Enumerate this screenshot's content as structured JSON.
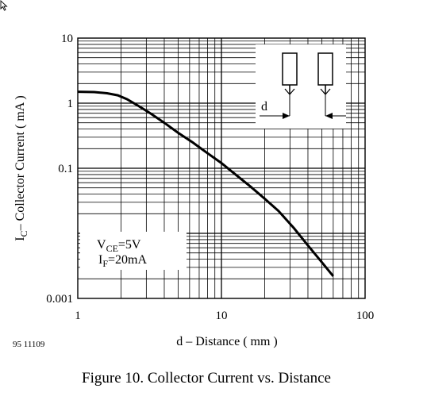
{
  "chart_data": {
    "type": "line",
    "xscale": "log",
    "yscale": "log",
    "xlim": [
      1,
      100
    ],
    "ylim": [
      0.001,
      10
    ],
    "grid": true,
    "xlabel": "d – Distance ( mm )",
    "ylabel": "I",
    "ylabel_sub": "C",
    "ylabel_rest": "– Collector Current ( mA )",
    "x_ticks": [
      {
        "value": 1,
        "label": "1"
      },
      {
        "value": 10,
        "label": "10"
      },
      {
        "value": 100,
        "label": "100"
      }
    ],
    "y_ticks": [
      {
        "value": 10,
        "label": "10"
      },
      {
        "value": 1,
        "label": "1"
      },
      {
        "value": 0.1,
        "label": "0.1"
      },
      {
        "value": 0.001,
        "label": "0.001"
      }
    ],
    "series": [
      {
        "x": [
          1,
          1.3,
          1.6,
          1.9,
          2.2,
          2.6,
          3.2,
          4,
          5,
          6.3,
          8,
          10,
          13,
          16,
          20,
          25,
          32,
          40,
          50,
          60
        ],
        "y": [
          1.5,
          1.48,
          1.42,
          1.32,
          1.15,
          0.93,
          0.7,
          0.5,
          0.35,
          0.25,
          0.17,
          0.12,
          0.075,
          0.052,
          0.034,
          0.022,
          0.012,
          0.0065,
          0.0036,
          0.0022
        ]
      }
    ],
    "annotations": {
      "vce_label": "V",
      "vce_sub": "CE",
      "vce_value": "=5V",
      "if_label": "I",
      "if_sub": "F",
      "if_value": "=20mA",
      "inset_label": "d"
    }
  },
  "figure_id": "95 11109",
  "caption": "Figure 10.  Collector Current vs. Distance"
}
